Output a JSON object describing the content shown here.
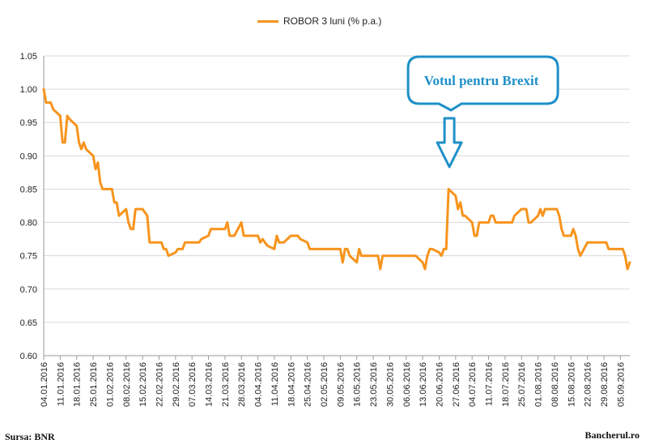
{
  "legend": {
    "label": "ROBOR 3 luni (% p.a.)"
  },
  "footer": {
    "source": "Sursa: BNR",
    "site": "Bancherul.ro"
  },
  "annotation": {
    "text": "Votul pentru Brexit",
    "date": "24.06.2016"
  },
  "colors": {
    "series": "#F7941D",
    "annotation": "#1E90C8",
    "grid": "#D9D9D9",
    "axis": "#9A9A9A"
  },
  "chart_data": {
    "type": "line",
    "xlabel": "",
    "ylabel": "",
    "ylim": [
      0.6,
      1.05
    ],
    "yticks": [
      "0.60",
      "0.65",
      "0.70",
      "0.75",
      "0.80",
      "0.85",
      "0.90",
      "0.95",
      "1.00",
      "1.05"
    ],
    "xlim": [
      "04.01.2016",
      "09.09.2016"
    ],
    "xticks": [
      "04.01.2016",
      "11.01.2016",
      "18.01.2016",
      "25.01.2016",
      "01.02.2016",
      "08.02.2016",
      "15.02.2016",
      "22.02.2016",
      "29.02.2016",
      "07.03.2016",
      "14.03.2016",
      "21.03.2016",
      "28.03.2016",
      "04.04.2016",
      "11.04.2016",
      "18.04.2016",
      "25.04.2016",
      "02.05.2016",
      "09.05.2016",
      "16.05.2016",
      "23.05.2016",
      "30.05.2016",
      "06.06.2016",
      "13.06.2016",
      "20.06.2016",
      "27.06.2016",
      "04.07.2016",
      "11.07.2016",
      "18.07.2016",
      "25.07.2016",
      "01.08.2016",
      "08.08.2016",
      "15.08.2016",
      "22.08.2016",
      "29.08.2016",
      "05.09.2016"
    ],
    "grid": true,
    "legend_position": "top",
    "series": [
      {
        "name": "ROBOR 3 luni (% p.a.)",
        "points": [
          [
            "04.01.2016",
            1.0
          ],
          [
            "05.01.2016",
            0.98
          ],
          [
            "06.01.2016",
            0.98
          ],
          [
            "07.01.2016",
            0.98
          ],
          [
            "08.01.2016",
            0.97
          ],
          [
            "11.01.2016",
            0.96
          ],
          [
            "12.01.2016",
            0.92
          ],
          [
            "13.01.2016",
            0.92
          ],
          [
            "14.01.2016",
            0.96
          ],
          [
            "15.01.2016",
            0.955
          ],
          [
            "18.01.2016",
            0.945
          ],
          [
            "19.01.2016",
            0.92
          ],
          [
            "20.01.2016",
            0.91
          ],
          [
            "21.01.2016",
            0.92
          ],
          [
            "22.01.2016",
            0.91
          ],
          [
            "25.01.2016",
            0.9
          ],
          [
            "26.01.2016",
            0.88
          ],
          [
            "27.01.2016",
            0.89
          ],
          [
            "28.01.2016",
            0.86
          ],
          [
            "29.01.2016",
            0.85
          ],
          [
            "01.02.2016",
            0.85
          ],
          [
            "02.02.2016",
            0.85
          ],
          [
            "03.02.2016",
            0.83
          ],
          [
            "04.02.2016",
            0.83
          ],
          [
            "05.02.2016",
            0.81
          ],
          [
            "08.02.2016",
            0.82
          ],
          [
            "09.02.2016",
            0.8
          ],
          [
            "10.02.2016",
            0.79
          ],
          [
            "11.02.2016",
            0.79
          ],
          [
            "12.02.2016",
            0.82
          ],
          [
            "15.02.2016",
            0.82
          ],
          [
            "16.02.2016",
            0.815
          ],
          [
            "17.02.2016",
            0.81
          ],
          [
            "18.02.2016",
            0.77
          ],
          [
            "19.02.2016",
            0.77
          ],
          [
            "22.02.2016",
            0.77
          ],
          [
            "23.02.2016",
            0.77
          ],
          [
            "24.02.2016",
            0.76
          ],
          [
            "25.02.2016",
            0.76
          ],
          [
            "26.02.2016",
            0.75
          ],
          [
            "29.02.2016",
            0.755
          ],
          [
            "01.03.2016",
            0.76
          ],
          [
            "02.03.2016",
            0.76
          ],
          [
            "03.03.2016",
            0.76
          ],
          [
            "04.03.2016",
            0.77
          ],
          [
            "07.03.2016",
            0.77
          ],
          [
            "08.03.2016",
            0.77
          ],
          [
            "09.03.2016",
            0.77
          ],
          [
            "10.03.2016",
            0.77
          ],
          [
            "11.03.2016",
            0.775
          ],
          [
            "14.03.2016",
            0.78
          ],
          [
            "15.03.2016",
            0.79
          ],
          [
            "16.03.2016",
            0.79
          ],
          [
            "17.03.2016",
            0.79
          ],
          [
            "18.03.2016",
            0.79
          ],
          [
            "21.03.2016",
            0.79
          ],
          [
            "22.03.2016",
            0.8
          ],
          [
            "23.03.2016",
            0.78
          ],
          [
            "24.03.2016",
            0.78
          ],
          [
            "25.03.2016",
            0.78
          ],
          [
            "28.03.2016",
            0.8
          ],
          [
            "29.03.2016",
            0.78
          ],
          [
            "30.03.2016",
            0.78
          ],
          [
            "31.03.2016",
            0.78
          ],
          [
            "01.04.2016",
            0.78
          ],
          [
            "04.04.2016",
            0.78
          ],
          [
            "05.04.2016",
            0.77
          ],
          [
            "06.04.2016",
            0.775
          ],
          [
            "07.04.2016",
            0.77
          ],
          [
            "08.04.2016",
            0.765
          ],
          [
            "11.04.2016",
            0.76
          ],
          [
            "12.04.2016",
            0.78
          ],
          [
            "13.04.2016",
            0.77
          ],
          [
            "14.04.2016",
            0.77
          ],
          [
            "15.04.2016",
            0.77
          ],
          [
            "18.04.2016",
            0.78
          ],
          [
            "19.04.2016",
            0.78
          ],
          [
            "20.04.2016",
            0.78
          ],
          [
            "21.04.2016",
            0.78
          ],
          [
            "22.04.2016",
            0.775
          ],
          [
            "25.04.2016",
            0.77
          ],
          [
            "26.04.2016",
            0.76
          ],
          [
            "27.04.2016",
            0.76
          ],
          [
            "28.04.2016",
            0.76
          ],
          [
            "29.04.2016",
            0.76
          ],
          [
            "02.05.2016",
            0.76
          ],
          [
            "03.05.2016",
            0.76
          ],
          [
            "04.05.2016",
            0.76
          ],
          [
            "05.05.2016",
            0.76
          ],
          [
            "06.05.2016",
            0.76
          ],
          [
            "09.05.2016",
            0.76
          ],
          [
            "10.05.2016",
            0.74
          ],
          [
            "11.05.2016",
            0.76
          ],
          [
            "12.05.2016",
            0.76
          ],
          [
            "13.05.2016",
            0.75
          ],
          [
            "16.05.2016",
            0.74
          ],
          [
            "17.05.2016",
            0.76
          ],
          [
            "18.05.2016",
            0.75
          ],
          [
            "19.05.2016",
            0.75
          ],
          [
            "20.05.2016",
            0.75
          ],
          [
            "23.05.2016",
            0.75
          ],
          [
            "24.05.2016",
            0.75
          ],
          [
            "25.05.2016",
            0.75
          ],
          [
            "26.05.2016",
            0.73
          ],
          [
            "27.05.2016",
            0.75
          ],
          [
            "30.05.2016",
            0.75
          ],
          [
            "31.05.2016",
            0.75
          ],
          [
            "01.06.2016",
            0.75
          ],
          [
            "02.06.2016",
            0.75
          ],
          [
            "03.06.2016",
            0.75
          ],
          [
            "06.06.2016",
            0.75
          ],
          [
            "07.06.2016",
            0.75
          ],
          [
            "08.06.2016",
            0.75
          ],
          [
            "09.06.2016",
            0.75
          ],
          [
            "10.06.2016",
            0.75
          ],
          [
            "13.06.2016",
            0.74
          ],
          [
            "14.06.2016",
            0.73
          ],
          [
            "15.06.2016",
            0.75
          ],
          [
            "16.06.2016",
            0.76
          ],
          [
            "17.06.2016",
            0.76
          ],
          [
            "20.06.2016",
            0.755
          ],
          [
            "21.06.2016",
            0.75
          ],
          [
            "22.06.2016",
            0.76
          ],
          [
            "23.06.2016",
            0.76
          ],
          [
            "24.06.2016",
            0.85
          ],
          [
            "27.06.2016",
            0.84
          ],
          [
            "28.06.2016",
            0.82
          ],
          [
            "29.06.2016",
            0.83
          ],
          [
            "30.06.2016",
            0.81
          ],
          [
            "01.07.2016",
            0.81
          ],
          [
            "04.07.2016",
            0.8
          ],
          [
            "05.07.2016",
            0.78
          ],
          [
            "06.07.2016",
            0.78
          ],
          [
            "07.07.2016",
            0.8
          ],
          [
            "08.07.2016",
            0.8
          ],
          [
            "11.07.2016",
            0.8
          ],
          [
            "12.07.2016",
            0.81
          ],
          [
            "13.07.2016",
            0.81
          ],
          [
            "14.07.2016",
            0.8
          ],
          [
            "15.07.2016",
            0.8
          ],
          [
            "18.07.2016",
            0.8
          ],
          [
            "19.07.2016",
            0.8
          ],
          [
            "20.07.2016",
            0.8
          ],
          [
            "21.07.2016",
            0.8
          ],
          [
            "22.07.2016",
            0.81
          ],
          [
            "25.07.2016",
            0.82
          ],
          [
            "26.07.2016",
            0.82
          ],
          [
            "27.07.2016",
            0.82
          ],
          [
            "28.07.2016",
            0.8
          ],
          [
            "29.07.2016",
            0.8
          ],
          [
            "01.08.2016",
            0.81
          ],
          [
            "02.08.2016",
            0.82
          ],
          [
            "03.08.2016",
            0.81
          ],
          [
            "04.08.2016",
            0.82
          ],
          [
            "05.08.2016",
            0.82
          ],
          [
            "08.08.2016",
            0.82
          ],
          [
            "09.08.2016",
            0.82
          ],
          [
            "10.08.2016",
            0.81
          ],
          [
            "11.08.2016",
            0.79
          ],
          [
            "12.08.2016",
            0.78
          ],
          [
            "15.08.2016",
            0.78
          ],
          [
            "16.08.2016",
            0.79
          ],
          [
            "17.08.2016",
            0.78
          ],
          [
            "18.08.2016",
            0.76
          ],
          [
            "19.08.2016",
            0.75
          ],
          [
            "22.08.2016",
            0.77
          ],
          [
            "23.08.2016",
            0.77
          ],
          [
            "24.08.2016",
            0.77
          ],
          [
            "25.08.2016",
            0.77
          ],
          [
            "26.08.2016",
            0.77
          ],
          [
            "29.08.2016",
            0.77
          ],
          [
            "30.08.2016",
            0.77
          ],
          [
            "31.08.2016",
            0.76
          ],
          [
            "01.09.2016",
            0.76
          ],
          [
            "02.09.2016",
            0.76
          ],
          [
            "05.09.2016",
            0.76
          ],
          [
            "06.09.2016",
            0.76
          ],
          [
            "07.09.2016",
            0.75
          ],
          [
            "08.09.2016",
            0.73
          ],
          [
            "09.09.2016",
            0.74
          ]
        ]
      }
    ]
  }
}
